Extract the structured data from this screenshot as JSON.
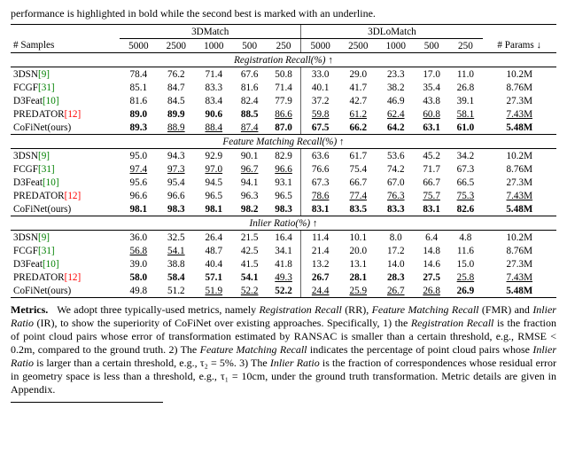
{
  "caption_top": "performance is highlighted in bold while the second best is marked with an underline.",
  "col_groups": {
    "g1": "3DMatch",
    "g2": "3DLoMatch"
  },
  "header": {
    "row_label": "# Samples",
    "samples": [
      "5000",
      "2500",
      "1000",
      "500",
      "250",
      "5000",
      "2500",
      "1000",
      "500",
      "250"
    ],
    "params": "# Params ↓"
  },
  "sections": [
    {
      "title": "Registration Recall(%) ↑",
      "rows": [
        {
          "method": "3DSN",
          "cite": "[9]",
          "cite_cls": "cite-green",
          "vals": [
            "78.4",
            "76.2",
            "71.4",
            "67.6",
            "50.8",
            "33.0",
            "29.0",
            "23.3",
            "17.0",
            "11.0"
          ],
          "styles": [
            "",
            "",
            "",
            "",
            "",
            "",
            "",
            "",
            "",
            ""
          ],
          "params": "10.2M",
          "p_style": ""
        },
        {
          "method": "FCGF",
          "cite": "[31]",
          "cite_cls": "cite-green",
          "vals": [
            "85.1",
            "84.7",
            "83.3",
            "81.6",
            "71.4",
            "40.1",
            "41.7",
            "38.2",
            "35.4",
            "26.8"
          ],
          "styles": [
            "",
            "",
            "",
            "",
            "",
            "",
            "",
            "",
            "",
            ""
          ],
          "params": "8.76M",
          "p_style": ""
        },
        {
          "method": "D3Feat",
          "cite": "[10]",
          "cite_cls": "cite-green",
          "vals": [
            "81.6",
            "84.5",
            "83.4",
            "82.4",
            "77.9",
            "37.2",
            "42.7",
            "46.9",
            "43.8",
            "39.1"
          ],
          "styles": [
            "",
            "",
            "",
            "",
            "",
            "",
            "",
            "",
            "",
            ""
          ],
          "params": "27.3M",
          "p_style": ""
        },
        {
          "method": "PREDATOR",
          "cite": "[12]",
          "cite_cls": "cite-red",
          "vals": [
            "89.0",
            "89.9",
            "90.6",
            "88.5",
            "86.6",
            "59.8",
            "61.2",
            "62.4",
            "60.8",
            "58.1"
          ],
          "styles": [
            "b",
            "b",
            "b",
            "b",
            "u",
            "u",
            "u",
            "u",
            "u",
            "u"
          ],
          "params": "7.43M",
          "p_style": "u"
        },
        {
          "method": "CoFiNet(ours)",
          "cite": "",
          "cite_cls": "",
          "vals": [
            "89.3",
            "88.9",
            "88.4",
            "87.4",
            "87.0",
            "67.5",
            "66.2",
            "64.2",
            "63.1",
            "61.0"
          ],
          "styles": [
            "b",
            "u",
            "u",
            "u",
            "b",
            "b",
            "b",
            "b",
            "b",
            "b"
          ],
          "params": "5.48M",
          "p_style": "b"
        }
      ]
    },
    {
      "title": "Feature Matching Recall(%) ↑",
      "rows": [
        {
          "method": "3DSN",
          "cite": "[9]",
          "cite_cls": "cite-green",
          "vals": [
            "95.0",
            "94.3",
            "92.9",
            "90.1",
            "82.9",
            "63.6",
            "61.7",
            "53.6",
            "45.2",
            "34.2"
          ],
          "styles": [
            "",
            "",
            "",
            "",
            "",
            "",
            "",
            "",
            "",
            ""
          ],
          "params": "10.2M",
          "p_style": ""
        },
        {
          "method": "FCGF",
          "cite": "[31]",
          "cite_cls": "cite-green",
          "vals": [
            "97.4",
            "97.3",
            "97.0",
            "96.7",
            "96.6",
            "76.6",
            "75.4",
            "74.2",
            "71.7",
            "67.3"
          ],
          "styles": [
            "u",
            "u",
            "u",
            "u",
            "u",
            "",
            "",
            "",
            "",
            ""
          ],
          "params": "8.76M",
          "p_style": ""
        },
        {
          "method": "D3Feat",
          "cite": "[10]",
          "cite_cls": "cite-green",
          "vals": [
            "95.6",
            "95.4",
            "94.5",
            "94.1",
            "93.1",
            "67.3",
            "66.7",
            "67.0",
            "66.7",
            "66.5"
          ],
          "styles": [
            "",
            "",
            "",
            "",
            "",
            "",
            "",
            "",
            "",
            ""
          ],
          "params": "27.3M",
          "p_style": ""
        },
        {
          "method": "PREDATOR",
          "cite": "[12]",
          "cite_cls": "cite-red",
          "vals": [
            "96.6",
            "96.6",
            "96.5",
            "96.3",
            "96.5",
            "78.6",
            "77.4",
            "76.3",
            "75.7",
            "75.3"
          ],
          "styles": [
            "",
            "",
            "",
            "",
            "",
            "u",
            "u",
            "u",
            "u",
            "u"
          ],
          "params": "7.43M",
          "p_style": "u"
        },
        {
          "method": "CoFiNet(ours)",
          "cite": "",
          "cite_cls": "",
          "vals": [
            "98.1",
            "98.3",
            "98.1",
            "98.2",
            "98.3",
            "83.1",
            "83.5",
            "83.3",
            "83.1",
            "82.6"
          ],
          "styles": [
            "b",
            "b",
            "b",
            "b",
            "b",
            "b",
            "b",
            "b",
            "b",
            "b"
          ],
          "params": "5.48M",
          "p_style": "b"
        }
      ]
    },
    {
      "title": "Inlier Ratio(%) ↑",
      "rows": [
        {
          "method": "3DSN",
          "cite": "[9]",
          "cite_cls": "cite-green",
          "vals": [
            "36.0",
            "32.5",
            "26.4",
            "21.5",
            "16.4",
            "11.4",
            "10.1",
            "8.0",
            "6.4",
            "4.8"
          ],
          "styles": [
            "",
            "",
            "",
            "",
            "",
            "",
            "",
            "",
            "",
            ""
          ],
          "params": "10.2M",
          "p_style": ""
        },
        {
          "method": "FCGF",
          "cite": "[31]",
          "cite_cls": "cite-green",
          "vals": [
            "56.8",
            "54.1",
            "48.7",
            "42.5",
            "34.1",
            "21.4",
            "20.0",
            "17.2",
            "14.8",
            "11.6"
          ],
          "styles": [
            "u",
            "u",
            "",
            "",
            "",
            "",
            "",
            "",
            "",
            ""
          ],
          "params": "8.76M",
          "p_style": ""
        },
        {
          "method": "D3Feat",
          "cite": "[10]",
          "cite_cls": "cite-green",
          "vals": [
            "39.0",
            "38.8",
            "40.4",
            "41.5",
            "41.8",
            "13.2",
            "13.1",
            "14.0",
            "14.6",
            "15.0"
          ],
          "styles": [
            "",
            "",
            "",
            "",
            "",
            "",
            "",
            "",
            "",
            ""
          ],
          "params": "27.3M",
          "p_style": ""
        },
        {
          "method": "PREDATOR",
          "cite": "[12]",
          "cite_cls": "cite-red",
          "vals": [
            "58.0",
            "58.4",
            "57.1",
            "54.1",
            "49.3",
            "26.7",
            "28.1",
            "28.3",
            "27.5",
            "25.8"
          ],
          "styles": [
            "b",
            "b",
            "b",
            "b",
            "u",
            "b",
            "b",
            "b",
            "b",
            "u"
          ],
          "params": "7.43M",
          "p_style": "u"
        },
        {
          "method": "CoFiNet(ours)",
          "cite": "",
          "cite_cls": "",
          "vals": [
            "49.8",
            "51.2",
            "51.9",
            "52.2",
            "52.2",
            "24.4",
            "25.9",
            "26.7",
            "26.8",
            "26.9"
          ],
          "styles": [
            "",
            "",
            "u",
            "u",
            "b",
            "u",
            "u",
            "u",
            "u",
            "b"
          ],
          "params": "5.48M",
          "p_style": "b"
        }
      ]
    }
  ],
  "metrics": {
    "head": "Metrics.",
    "body1": "We adopt three typically-used metrics, namely ",
    "rr": "Registration Recall",
    "body2": " (RR), ",
    "fmr": "Feature Matching Recall",
    "body3": " (FMR) and ",
    "ir": "Inlier Ratio",
    "body4": " (IR), to show the superiority of CoFiNet over existing approaches. Specifically, 1) the ",
    "rr2": "Registration Recall",
    "body5": " is the fraction of point cloud pairs whose error of transformation estimated by RANSAC is smaller than a certain threshold, e.g., RMSE < 0.2m, compared to the ground truth. 2) The ",
    "fmr2": "Feature Matching Recall",
    "body6": " indicates the percentage of point cloud pairs whose ",
    "ir2": "Inlier Ratio",
    "body7": " is larger than a certain threshold, e.g., τ₂ = 5%. 3) The ",
    "ir3": "Inlier Ratio",
    "body8": " is the fraction of correspondences whose residual error in geometry space is less than a threshold, e.g., τ₁ = 10cm, under the ground truth transformation. Metric details are given in Appendix."
  }
}
